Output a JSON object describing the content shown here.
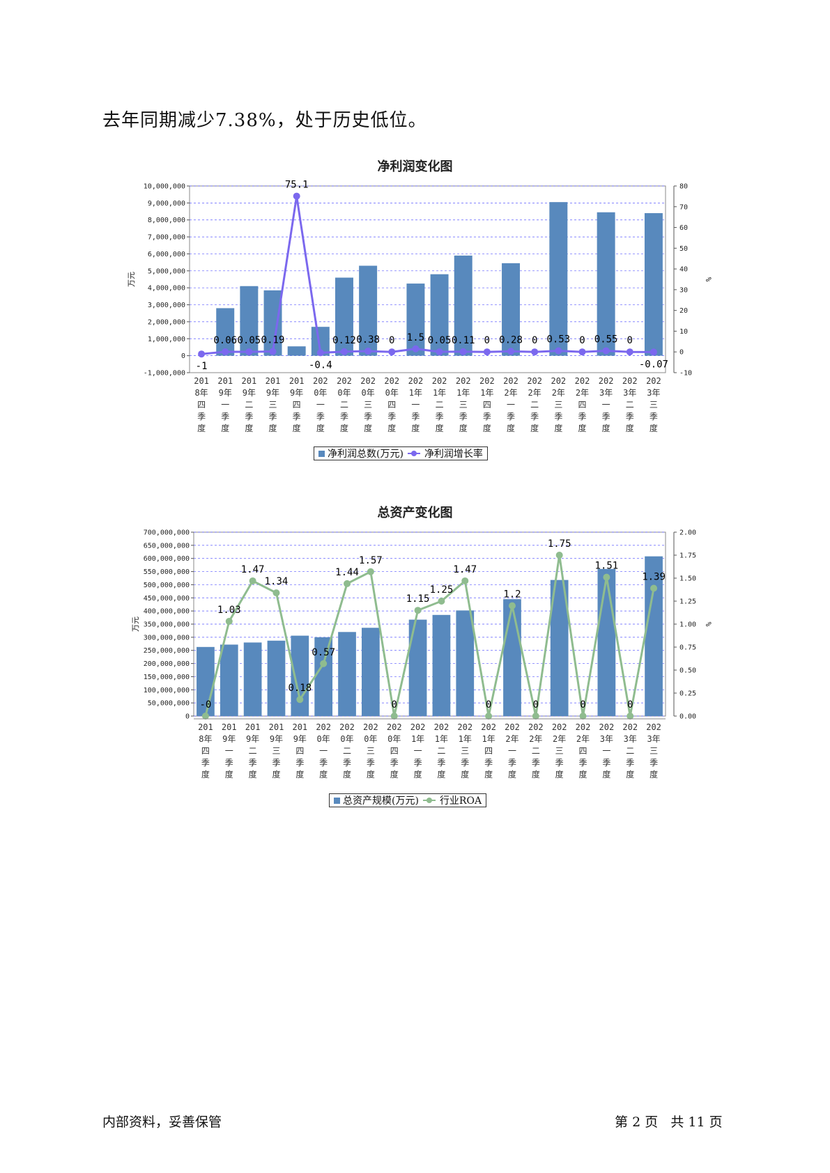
{
  "intro_text": "去年同期减少7.38%，处于历史低位。",
  "footer": {
    "left": "内部资料，妥善保管",
    "page_prefix": "第",
    "page_num": "2",
    "page_mid": "页",
    "total_prefix": "共",
    "total_num": "11",
    "total_suffix": "页"
  },
  "colors": {
    "bar": "#5889bd",
    "line1": "#7b68ee",
    "line2": "#8fbc8f",
    "grid": "#5a5aff"
  },
  "quarters": [
    [
      "201",
      "8年",
      "四",
      "季",
      "度"
    ],
    [
      "201",
      "9年",
      "一",
      "季",
      "度"
    ],
    [
      "201",
      "9年",
      "二",
      "季",
      "度"
    ],
    [
      "201",
      "9年",
      "三",
      "季",
      "度"
    ],
    [
      "201",
      "9年",
      "四",
      "季",
      "度"
    ],
    [
      "202",
      "0年",
      "一",
      "季",
      "度"
    ],
    [
      "202",
      "0年",
      "二",
      "季",
      "度"
    ],
    [
      "202",
      "0年",
      "三",
      "季",
      "度"
    ],
    [
      "202",
      "0年",
      "四",
      "季",
      "度"
    ],
    [
      "202",
      "1年",
      "一",
      "季",
      "度"
    ],
    [
      "202",
      "1年",
      "二",
      "季",
      "度"
    ],
    [
      "202",
      "1年",
      "三",
      "季",
      "度"
    ],
    [
      "202",
      "1年",
      "四",
      "季",
      "度"
    ],
    [
      "202",
      "2年",
      "一",
      "季",
      "度"
    ],
    [
      "202",
      "2年",
      "二",
      "季",
      "度"
    ],
    [
      "202",
      "2年",
      "三",
      "季",
      "度"
    ],
    [
      "202",
      "2年",
      "四",
      "季",
      "度"
    ],
    [
      "202",
      "3年",
      "一",
      "季",
      "度"
    ],
    [
      "202",
      "3年",
      "二",
      "季",
      "度"
    ],
    [
      "202",
      "3年",
      "三",
      "季",
      "度"
    ]
  ],
  "chart_data": [
    {
      "type": "bar",
      "title": "净利润变化图",
      "ylabel": "万元",
      "y2label": "%",
      "ylim": [
        -1000000,
        10000000
      ],
      "yticks": [
        -1000000,
        0,
        1000000,
        2000000,
        3000000,
        4000000,
        5000000,
        6000000,
        7000000,
        8000000,
        9000000,
        10000000
      ],
      "ytick_labels": [
        "-1,000,000",
        "0",
        "1,000,000",
        "2,000,000",
        "3,000,000",
        "4,000,000",
        "5,000,000",
        "6,000,000",
        "7,000,000",
        "8,000,000",
        "9,000,000",
        "10,000,000"
      ],
      "y2lim": [
        -10,
        80
      ],
      "y2ticks": [
        -10,
        0,
        10,
        20,
        30,
        40,
        50,
        60,
        70,
        80
      ],
      "y2tick_labels": [
        "-10",
        "0",
        "10",
        "20",
        "30",
        "40",
        "50",
        "60",
        "70",
        "80"
      ],
      "grid": true,
      "legend_position": "bottom",
      "series": [
        {
          "name": "净利润总数(万元)",
          "kind": "bar",
          "axis": "left",
          "values": [
            0,
            2800000,
            4100000,
            3850000,
            550000,
            1700000,
            4600000,
            5300000,
            0,
            4250000,
            4800000,
            5900000,
            0,
            5450000,
            0,
            9050000,
            0,
            8450000,
            0,
            8400000
          ]
        },
        {
          "name": "净利润增长率",
          "kind": "line",
          "axis": "right",
          "values": [
            -1,
            0.06,
            0.05,
            0.19,
            75.1,
            -0.4,
            0.12,
            0.38,
            0,
            1.5,
            0.05,
            0.11,
            0,
            0.28,
            0,
            0.53,
            0,
            0.55,
            0,
            -0.07
          ],
          "labels": [
            "-1",
            "0.06",
            "0.05",
            "0.19",
            "75.1",
            "-0.4",
            "0.12",
            "0.38",
            "0",
            "1.5",
            "0.05",
            "0.11",
            "0",
            "0.28",
            "0",
            "0.53",
            "0",
            "0.55",
            "0",
            "-0.07"
          ]
        }
      ]
    },
    {
      "type": "bar",
      "title": "总资产变化图",
      "ylabel": "万元",
      "y2label": "%",
      "ylim": [
        0,
        700000000
      ],
      "yticks": [
        0,
        50000000,
        100000000,
        150000000,
        200000000,
        250000000,
        300000000,
        350000000,
        400000000,
        450000000,
        500000000,
        550000000,
        600000000,
        650000000,
        700000000
      ],
      "ytick_labels": [
        "0",
        "50,000,000",
        "100,000,000",
        "150,000,000",
        "200,000,000",
        "250,000,000",
        "300,000,000",
        "350,000,000",
        "400,000,000",
        "450,000,000",
        "500,000,000",
        "550,000,000",
        "600,000,000",
        "650,000,000",
        "700,000,000"
      ],
      "y2lim": [
        0,
        2
      ],
      "y2ticks": [
        0,
        0.25,
        0.5,
        0.75,
        1.0,
        1.25,
        1.5,
        1.75,
        2.0
      ],
      "y2tick_labels": [
        "0.00",
        "0.25",
        "0.50",
        "0.75",
        "1.00",
        "1.25",
        "1.50",
        "1.75",
        "2.00"
      ],
      "grid": true,
      "legend_position": "bottom",
      "series": [
        {
          "name": "总资产规模(万元)",
          "kind": "bar",
          "axis": "left",
          "values": [
            263000000,
            272000000,
            280000000,
            287000000,
            306000000,
            300000000,
            320000000,
            336000000,
            0,
            367000000,
            385000000,
            402000000,
            0,
            445000000,
            0,
            518000000,
            0,
            560000000,
            0,
            608000000
          ]
        },
        {
          "name": "行业ROA",
          "kind": "line",
          "axis": "right",
          "values": [
            0,
            1.03,
            1.47,
            1.34,
            0.18,
            0.57,
            1.44,
            1.57,
            0,
            1.15,
            1.25,
            1.47,
            0,
            1.2,
            0,
            1.75,
            0,
            1.51,
            0,
            1.39
          ],
          "labels": [
            "-0",
            "1.03",
            "1.47",
            "1.34",
            "0.18",
            "0.57",
            "1.44",
            "1.57",
            "0",
            "1.15",
            "1.25",
            "1.47",
            "0",
            "1.2",
            "0",
            "1.75",
            "0",
            "1.51",
            "0",
            "1.39"
          ]
        }
      ]
    }
  ]
}
